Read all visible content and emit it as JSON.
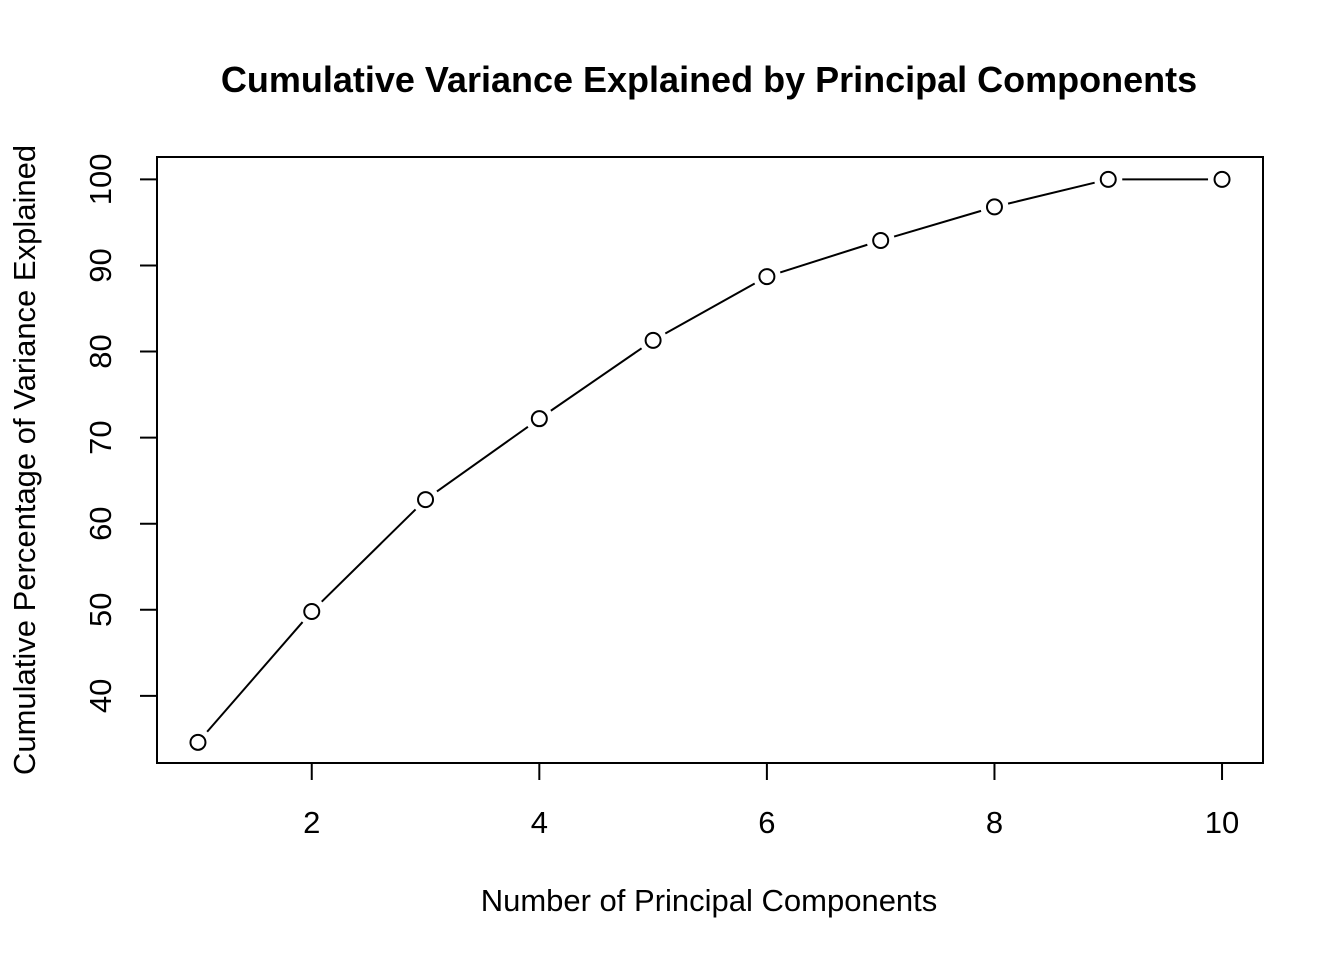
{
  "chart_data": {
    "type": "line",
    "title": "Cumulative Variance Explained by Principal Components",
    "xlabel": "Number of Principal Components",
    "ylabel": "Cumulative Percentage of Variance Explained",
    "x": [
      1,
      2,
      3,
      4,
      5,
      6,
      7,
      8,
      9,
      10
    ],
    "series": [
      {
        "values": [
          34.6,
          49.8,
          62.8,
          72.2,
          81.3,
          88.7,
          92.9,
          96.8,
          100.0,
          100.0
        ]
      }
    ],
    "xlim": [
      0.64,
      10.36
    ],
    "ylim": [
      32.2,
      102.6
    ],
    "xticks": [
      2,
      4,
      6,
      8,
      10
    ],
    "yticks": [
      40,
      50,
      60,
      70,
      80,
      90,
      100
    ],
    "point_style": "open-circle",
    "grid": false,
    "legend": "none"
  }
}
